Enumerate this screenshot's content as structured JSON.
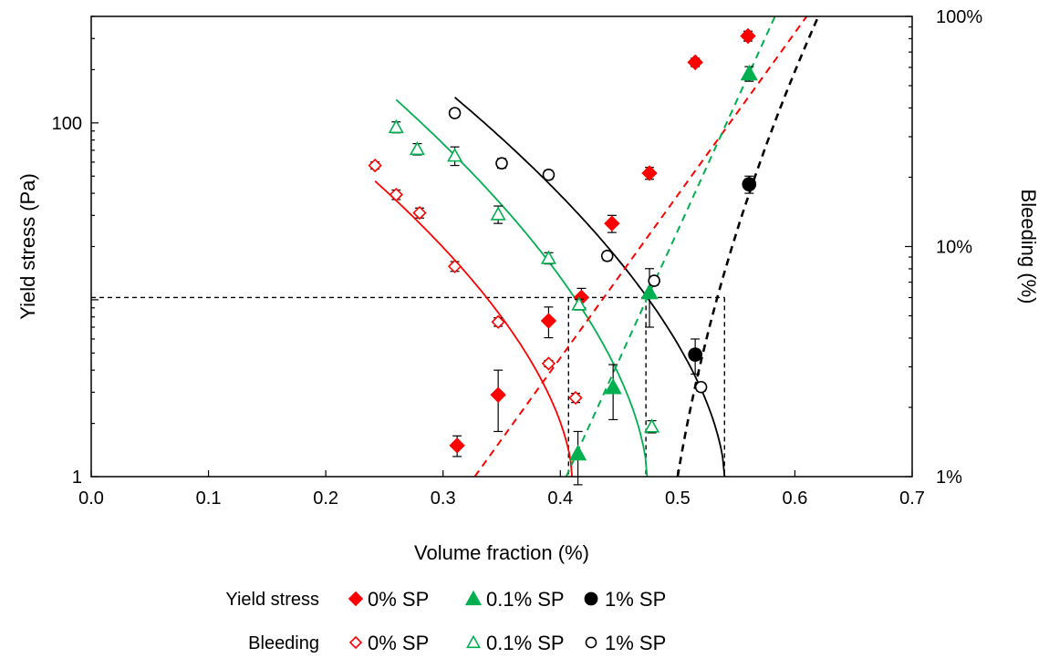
{
  "chart_data": {
    "type": "scatter",
    "xlabel": "Volume fraction (%)",
    "ylabel_left": "Yield stress (Pa)",
    "ylabel_right": "Bleeding (%)",
    "xlim": [
      0.0,
      0.7
    ],
    "x_ticks": [
      "0.0",
      "0.1",
      "0.2",
      "0.3",
      "0.4",
      "0.5",
      "0.6",
      "0.7"
    ],
    "y_left_scale": "log",
    "y_left_lim": [
      1,
      400
    ],
    "y_left_ticks": [
      {
        "value": 1,
        "label": "1"
      },
      {
        "value": 100,
        "label": "100"
      }
    ],
    "y_right_scale": "log",
    "y_right_lim": [
      1,
      100
    ],
    "y_right_ticks": [
      {
        "value": 1,
        "label": "1%"
      },
      {
        "value": 10,
        "label": "10%"
      },
      {
        "value": 100,
        "label": "100%"
      }
    ],
    "grid": false,
    "colors": {
      "red": "#ff0000",
      "green": "#00b050",
      "black": "#000000"
    },
    "yield_stress": [
      {
        "name": "0% SP",
        "color": "#ff0000",
        "marker": "diamond",
        "filled": true,
        "points": [
          [
            0.312,
            1.5,
            0.2
          ],
          [
            0.347,
            2.9,
            1.1
          ],
          [
            0.39,
            7.6,
            1.5
          ],
          [
            0.418,
            10.3,
            1.3
          ],
          [
            0.444,
            27,
            3
          ],
          [
            0.476,
            52,
            4
          ],
          [
            0.515,
            220,
            12
          ],
          [
            0.56,
            310,
            20
          ]
        ]
      },
      {
        "name": "0.1% SP",
        "color": "#00b050",
        "marker": "triangle",
        "filled": true,
        "points": [
          [
            0.415,
            1.35,
            0.45
          ],
          [
            0.445,
            3.2,
            1.1
          ],
          [
            0.476,
            11,
            4
          ],
          [
            0.561,
            190,
            18
          ]
        ]
      },
      {
        "name": "1% SP",
        "color": "#000000",
        "marker": "circle",
        "filled": true,
        "points": [
          [
            0.515,
            4.9,
            1.1
          ],
          [
            0.561,
            45,
            5
          ]
        ]
      }
    ],
    "bleeding": [
      {
        "name": "0% SP",
        "color": "#ff0000",
        "marker": "diamond",
        "filled": false,
        "points": [
          [
            0.242,
            22.5,
            0.8
          ],
          [
            0.26,
            16.8,
            0.8
          ],
          [
            0.28,
            14.0,
            0.7
          ],
          [
            0.31,
            8.2,
            0.4
          ],
          [
            0.347,
            4.7,
            0.2
          ],
          [
            0.39,
            3.1,
            0.1
          ],
          [
            0.413,
            2.2,
            0.1
          ]
        ]
      },
      {
        "name": "0.1% SP",
        "color": "#00b050",
        "marker": "triangle",
        "filled": false,
        "points": [
          [
            0.26,
            33.0,
            1.8
          ],
          [
            0.278,
            26.5,
            1.5
          ],
          [
            0.31,
            24.8,
            2.3
          ],
          [
            0.347,
            13.8,
            1.2
          ],
          [
            0.39,
            8.9,
            0.5
          ],
          [
            0.416,
            5.6,
            0.3
          ],
          [
            0.478,
            1.65,
            0.1
          ]
        ]
      },
      {
        "name": "1% SP",
        "color": "#000000",
        "marker": "circle",
        "filled": false,
        "points": [
          [
            0.31,
            38.0,
            1.5
          ],
          [
            0.35,
            23.0,
            1.1
          ],
          [
            0.39,
            20.5,
            0.9
          ],
          [
            0.44,
            9.1,
            0.4
          ],
          [
            0.48,
            7.1,
            0.3
          ],
          [
            0.52,
            2.45,
            0.1
          ]
        ]
      }
    ],
    "yield_fit_lines": [
      {
        "name": "0% SP",
        "color": "#ff0000",
        "style": "dashed",
        "x": [
          0.327,
          0.61
        ],
        "y": [
          1,
          400
        ]
      },
      {
        "name": "0.1% SP",
        "color": "#00b050",
        "style": "dashed",
        "x": [
          0.405,
          0.583
        ],
        "y": [
          1,
          400
        ]
      },
      {
        "name": "1% SP",
        "color": "#000000",
        "style": "dashed",
        "x": [
          0.5,
          0.62
        ],
        "y": [
          1,
          400
        ],
        "curve": 0.5
      }
    ],
    "bleeding_fit_curves": [
      {
        "name": "0% SP",
        "color": "#ff0000",
        "a": 0.41,
        "b": 2.47,
        "x_from": 0.242
      },
      {
        "name": "0.1% SP",
        "color": "#00b050",
        "a": 0.474,
        "b": 3.15,
        "x_from": 0.26
      },
      {
        "name": "1% SP",
        "color": "#000000",
        "a": 0.54,
        "b": 3.17,
        "x_from": 0.31
      }
    ],
    "threshold": {
      "y_left": 10.3,
      "x_markers": [
        0.407,
        0.473,
        0.54
      ]
    }
  },
  "legend": {
    "rows": [
      {
        "label": "Yield stress",
        "filled": true,
        "items": [
          {
            "text": "0% SP",
            "marker": "diamond",
            "color": "#ff0000"
          },
          {
            "text": "0.1% SP",
            "marker": "triangle",
            "color": "#00b050"
          },
          {
            "text": "1% SP",
            "marker": "circle",
            "color": "#000000"
          }
        ]
      },
      {
        "label": "Bleeding",
        "filled": false,
        "items": [
          {
            "text": "0% SP",
            "marker": "diamond",
            "color": "#ff0000"
          },
          {
            "text": "0.1% SP",
            "marker": "triangle",
            "color": "#00b050"
          },
          {
            "text": "1% SP",
            "marker": "circle",
            "color": "#000000"
          }
        ]
      }
    ]
  }
}
